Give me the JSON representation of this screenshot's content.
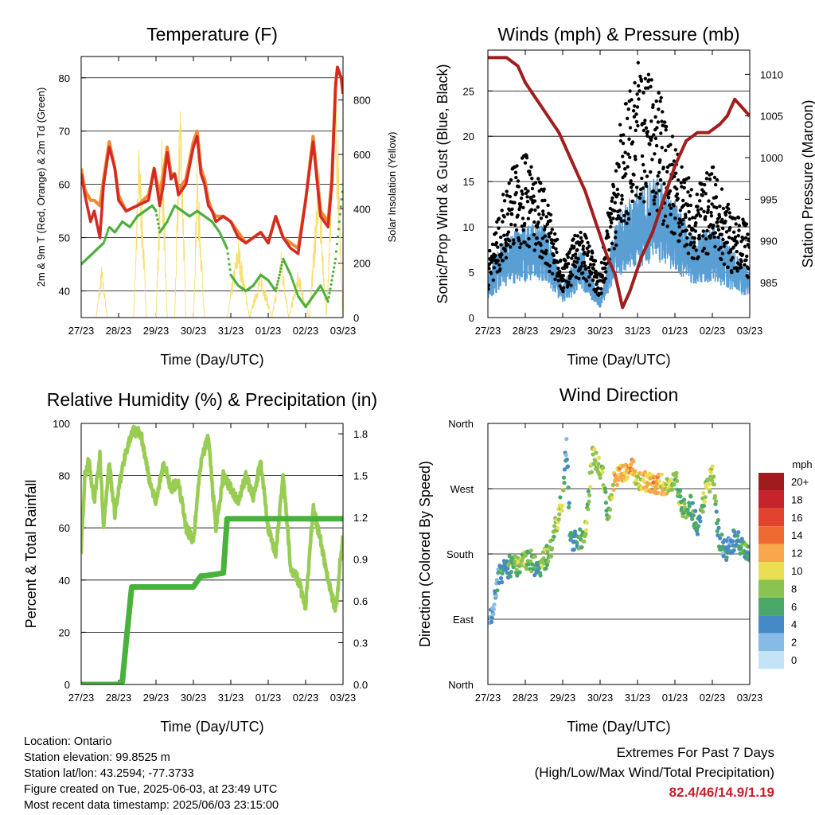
{
  "colors": {
    "temp_2m": "#d42a24",
    "temp_9m": "#f08a30",
    "dewpoint": "#4daf3c",
    "solar": "#f7df6c",
    "wind": "#5a9fd4",
    "gust": "#000000",
    "pressure": "#a01e1e",
    "rh": "#98cc52",
    "precip": "#48b23c",
    "accent_red": "#c8202a"
  },
  "chart_data": [
    {
      "id": "temperature",
      "type": "line",
      "title": "Temperature (F)",
      "xlabel": "Time (Day/UTC)",
      "ylabel": "2m & 9m T (Red, Orange) & 2m Td (Green)",
      "ylabel_right": "Solar Insolation (Yellow)",
      "x_ticks": [
        "27/23",
        "28/23",
        "29/23",
        "30/23",
        "31/23",
        "01/23",
        "02/23",
        "03/23"
      ],
      "ylim": [
        35,
        84
      ],
      "yticks": [
        40,
        50,
        60,
        70,
        80
      ],
      "ylim_right": [
        0,
        960
      ],
      "yticks_right": [
        0,
        200,
        400,
        600,
        800
      ],
      "grid": true,
      "series": [
        {
          "name": "2m T",
          "style": "line",
          "color_key": "temp_2m",
          "x": [
            0,
            0.1,
            0.25,
            0.35,
            0.5,
            0.6,
            0.75,
            0.9,
            1.0,
            1.2,
            1.5,
            1.8,
            1.95,
            2.1,
            2.2,
            2.3,
            2.4,
            2.5,
            2.6,
            2.8,
            3.0,
            3.1,
            3.2,
            3.3,
            3.4,
            3.5,
            3.6,
            3.8,
            4.0,
            4.2,
            4.4,
            4.6,
            4.8,
            5.0,
            5.2,
            5.4,
            5.6,
            5.8,
            6.0,
            6.2,
            6.4,
            6.6,
            6.7,
            6.8,
            6.85,
            6.95,
            7.0
          ],
          "y": [
            62,
            58,
            53,
            55,
            50,
            60,
            67,
            63,
            57,
            55,
            56,
            57,
            63,
            56,
            60,
            66,
            61,
            62,
            58,
            60,
            67,
            69,
            62,
            60,
            56,
            55,
            53,
            54,
            53,
            50,
            49,
            50,
            51,
            49,
            54,
            50,
            48,
            47,
            57,
            68,
            54,
            52,
            60,
            78,
            82,
            80,
            77
          ]
        },
        {
          "name": "9m T",
          "style": "line",
          "color_key": "temp_9m",
          "x": [
            0,
            0.1,
            0.25,
            0.35,
            0.5,
            0.6,
            0.75,
            0.9,
            1.0,
            1.2,
            1.5,
            1.8,
            1.95,
            2.1,
            2.2,
            2.3,
            2.4,
            2.5,
            2.6,
            2.8,
            3.0,
            3.1,
            3.2,
            3.3,
            3.4,
            3.5,
            3.6,
            3.8,
            4.0,
            4.2,
            4.4,
            4.6,
            4.8,
            5.0,
            5.2,
            5.4,
            5.6,
            5.8,
            6.0,
            6.2,
            6.4,
            6.6,
            6.7,
            6.8,
            6.85,
            6.95,
            7.0
          ],
          "y": [
            63,
            59,
            57,
            57,
            56,
            61,
            68,
            63,
            58,
            55,
            56,
            58,
            63,
            58,
            62,
            67,
            62,
            62,
            59,
            61,
            68,
            70,
            63,
            61,
            57,
            55,
            54,
            54,
            53,
            51,
            49,
            50,
            51,
            49,
            54,
            50,
            49,
            48,
            57,
            69,
            55,
            53,
            61,
            79,
            82,
            80,
            77
          ]
        },
        {
          "name": "2m Td",
          "style": "points",
          "color_key": "dewpoint",
          "x": [
            0,
            0.3,
            0.6,
            0.75,
            0.9,
            1.1,
            1.3,
            1.5,
            1.7,
            1.9,
            2.0,
            2.1,
            2.3,
            2.5,
            2.7,
            2.9,
            3.1,
            3.3,
            3.5,
            3.7,
            3.9,
            4.0,
            4.2,
            4.4,
            4.6,
            4.8,
            5.0,
            5.2,
            5.4,
            5.6,
            5.8,
            6.0,
            6.2,
            6.4,
            6.6,
            6.8,
            7.0
          ],
          "y": [
            45,
            47,
            49,
            52,
            51,
            53,
            52,
            54,
            55,
            56,
            55,
            51,
            53,
            56,
            55,
            54,
            55,
            54,
            53,
            51,
            48,
            43,
            41,
            40,
            41,
            43,
            42,
            40,
            46,
            43,
            39,
            37,
            39,
            41,
            38,
            46,
            60
          ]
        },
        {
          "name": "Solar Insolation",
          "style": "line",
          "axis": "right",
          "color_key": "solar",
          "x": [
            0,
            0.15,
            0.4,
            0.55,
            0.7,
            1.0,
            1.4,
            1.55,
            1.75,
            2.0,
            2.15,
            2.3,
            2.5,
            2.65,
            2.8,
            3.0,
            3.1,
            3.3,
            3.5,
            3.7,
            3.9,
            4.2,
            4.5,
            4.8,
            5.1,
            5.35,
            5.55,
            5.8,
            6.1,
            6.35,
            6.55,
            6.8,
            7.0
          ],
          "y": [
            0,
            0,
            0,
            200,
            0,
            0,
            0,
            700,
            0,
            0,
            750,
            0,
            0,
            920,
            0,
            0,
            600,
            0,
            0,
            0,
            0,
            300,
            0,
            180,
            0,
            250,
            0,
            180,
            0,
            600,
            0,
            950,
            0
          ]
        }
      ]
    },
    {
      "id": "winds",
      "type": "scatter",
      "title": "Winds (mph) & Pressure (mb)",
      "xlabel": "Time (Day/UTC)",
      "ylabel": "Sonic/Prop Wind & Gust (Blue, Black)",
      "ylabel_right": "Station Pressure (Maroon)",
      "x_ticks": [
        "27/23",
        "28/23",
        "29/23",
        "30/23",
        "31/23",
        "01/23",
        "02/23",
        "03/23"
      ],
      "ylim": [
        0,
        29.5
      ],
      "yticks": [
        0,
        5,
        10,
        15,
        20,
        25
      ],
      "ylim_right": [
        980.8,
        1012.9
      ],
      "yticks_right": [
        985,
        990,
        995,
        1000,
        1005,
        1010
      ],
      "grid": true,
      "series": [
        {
          "name": "Wind",
          "style": "band",
          "color_key": "wind",
          "x": [
            0,
            0.5,
            1.0,
            1.5,
            2.0,
            2.5,
            3.0,
            3.5,
            4.0,
            4.5,
            5.0,
            5.5,
            6.0,
            6.5,
            7.0
          ],
          "y": [
            4,
            7,
            8,
            8,
            3,
            6,
            2,
            9,
            11,
            12,
            10,
            7,
            8,
            6,
            4
          ]
        },
        {
          "name": "Gust",
          "style": "points",
          "color_key": "gust",
          "x": [
            0,
            0.5,
            1.0,
            1.5,
            2.0,
            2.5,
            3.0,
            3.5,
            4.0,
            4.5,
            5.0,
            5.5,
            6.0,
            6.5,
            7.0
          ],
          "y": [
            5,
            12,
            14,
            11,
            5,
            8,
            4,
            16,
            22,
            20,
            15,
            11,
            13,
            9,
            8
          ]
        },
        {
          "name": "Pressure",
          "style": "line",
          "axis": "right",
          "color_key": "pressure",
          "x": [
            0,
            0.2,
            0.5,
            0.8,
            1.0,
            1.3,
            1.6,
            1.9,
            2.2,
            2.6,
            2.9,
            3.2,
            3.4,
            3.6,
            3.8,
            4.1,
            4.4,
            4.7,
            5.0,
            5.3,
            5.6,
            5.9,
            6.2,
            6.4,
            6.6,
            6.8,
            7.0
          ],
          "y": [
            1012,
            1012,
            1012,
            1011,
            1009,
            1007,
            1005,
            1003,
            1000,
            996,
            992,
            988,
            986,
            982,
            984,
            988,
            991,
            995,
            999,
            1002,
            1003,
            1003,
            1004,
            1005,
            1007,
            1006,
            1005
          ]
        }
      ]
    },
    {
      "id": "humidity",
      "type": "line",
      "title": "Relative Humidity (%) & Precipitation (in)",
      "xlabel": "Time (Day/UTC)",
      "ylabel": "Percent & Total Rainfall",
      "x_ticks": [
        "27/23",
        "28/23",
        "29/23",
        "30/23",
        "31/23",
        "01/23",
        "02/23",
        "03/23"
      ],
      "ylim": [
        0,
        100
      ],
      "yticks": [
        0,
        20,
        40,
        60,
        80,
        100
      ],
      "ylim_right": [
        0,
        1.875
      ],
      "yticks_right": [
        "0.0",
        "0.3",
        "0.6",
        "0.9",
        "1.2",
        "1.5",
        "1.8"
      ],
      "grid": true,
      "series": [
        {
          "name": "RH",
          "style": "line",
          "color_key": "rh",
          "x": [
            0,
            0.1,
            0.2,
            0.35,
            0.5,
            0.6,
            0.75,
            0.9,
            1.0,
            1.2,
            1.4,
            1.6,
            1.8,
            2.0,
            2.2,
            2.4,
            2.6,
            2.8,
            3.0,
            3.2,
            3.4,
            3.6,
            3.8,
            4.0,
            4.2,
            4.4,
            4.6,
            4.8,
            5.0,
            5.2,
            5.4,
            5.6,
            5.8,
            6.0,
            6.2,
            6.4,
            6.6,
            6.8,
            7.0
          ],
          "y": [
            52,
            80,
            86,
            70,
            88,
            60,
            85,
            65,
            75,
            90,
            97,
            96,
            80,
            70,
            85,
            75,
            78,
            60,
            55,
            85,
            95,
            60,
            80,
            75,
            70,
            80,
            72,
            85,
            60,
            50,
            80,
            45,
            40,
            30,
            68,
            55,
            40,
            28,
            57
          ]
        },
        {
          "name": "Total Precipitation",
          "style": "line",
          "axis": "right",
          "color_key": "precip",
          "x": [
            0,
            0.5,
            1.0,
            1.1,
            1.2,
            1.35,
            1.5,
            2.0,
            2.5,
            3.0,
            3.2,
            3.3,
            3.8,
            3.9,
            4.2,
            5.0,
            6.0,
            7.0
          ],
          "y": [
            0,
            0,
            0,
            0.02,
            0.3,
            0.7,
            0.7,
            0.7,
            0.7,
            0.7,
            0.78,
            0.78,
            0.8,
            1.19,
            1.19,
            1.19,
            1.19,
            1.19
          ]
        }
      ]
    },
    {
      "id": "wind_direction",
      "type": "scatter",
      "title": "Wind Direction",
      "xlabel": "Time (Day/UTC)",
      "ylabel": "Direction (Colored By Speed)",
      "x_ticks": [
        "27/23",
        "28/23",
        "29/23",
        "30/23",
        "31/23",
        "01/23",
        "02/23",
        "03/23"
      ],
      "ylim": [
        0,
        360
      ],
      "ytick_labels": [
        "North",
        "East",
        "South",
        "West",
        "North"
      ],
      "ytick_values": [
        0,
        90,
        180,
        270,
        360
      ],
      "grid": true,
      "points": {
        "x": [
          0.1,
          0.3,
          0.5,
          0.7,
          0.9,
          1.1,
          1.3,
          1.5,
          1.7,
          1.9,
          2.0,
          2.1,
          2.2,
          2.4,
          2.6,
          2.8,
          3.0,
          3.1,
          3.2,
          3.4,
          3.6,
          3.8,
          4.0,
          4.2,
          4.4,
          4.6,
          4.8,
          5.0,
          5.2,
          5.4,
          5.6,
          5.8,
          6.0,
          6.2,
          6.4,
          6.6,
          6.8,
          7.0
        ],
        "direction": [
          100,
          150,
          160,
          165,
          165,
          175,
          160,
          170,
          190,
          240,
          250,
          340,
          200,
          195,
          210,
          320,
          300,
          280,
          230,
          290,
          290,
          300,
          285,
          280,
          275,
          280,
          270,
          290,
          240,
          250,
          220,
          260,
          290,
          195,
          185,
          200,
          190,
          185
        ],
        "speed": [
          3,
          4,
          5,
          7,
          8,
          7,
          6,
          8,
          7,
          8,
          9,
          3,
          5,
          6,
          8,
          8,
          9,
          8,
          6,
          12,
          11,
          12,
          10,
          11,
          12,
          11,
          9,
          8,
          7,
          7,
          4,
          9,
          8,
          5,
          4,
          5,
          6,
          6
        ]
      },
      "colorbar": {
        "label": "mph",
        "labels": [
          "20+",
          "18",
          "16",
          "14",
          "12",
          "10",
          "8",
          "6",
          "4",
          "2",
          "0"
        ],
        "colors": [
          "#a11b1e",
          "#c6242a",
          "#e2432f",
          "#ef6a31",
          "#f8a74c",
          "#e9df52",
          "#8cc24f",
          "#4aa869",
          "#4689c7",
          "#86bbe6",
          "#c3e3f6"
        ]
      }
    }
  ],
  "info": {
    "location": "Location: Ontario",
    "elevation": "Station elevation: 99.8525 m",
    "latlon": "Station lat/lon: 43.2594; -77.3733",
    "created": "Figure created on Tue, 2025-06-03, at 23:49 UTC",
    "latest": "Most recent data timestamp: 2025/06/03 23:15:00"
  },
  "extremes": {
    "line1": "Extremes For Past 7 Days",
    "line2": "(High/Low/Max Wind/Total Precipitation)",
    "values": "82.4/46/14.9/1.19"
  }
}
